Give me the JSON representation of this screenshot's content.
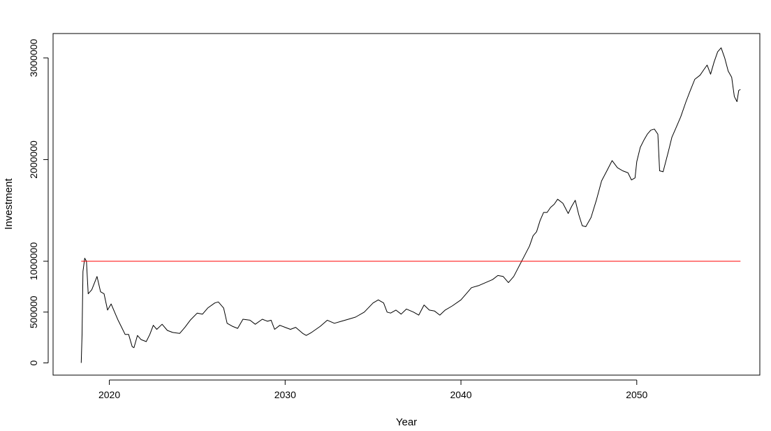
{
  "chart_data": {
    "type": "line",
    "title": "",
    "xlabel": "Year",
    "ylabel": "Investment",
    "xlim": [
      2016.8,
      2057.0
    ],
    "ylim": [
      -120000,
      3240000
    ],
    "x_ticks": [
      2020,
      2030,
      2040,
      2050
    ],
    "y_ticks": [
      0,
      500000,
      1000000,
      2000000,
      3000000
    ],
    "grid": false,
    "legend": "none",
    "colors": {
      "series": "#000000",
      "reference": "#ff0000"
    },
    "series": [
      {
        "color": "#000000",
        "points": [
          [
            2018.4,
            0
          ],
          [
            2018.45,
            280000
          ],
          [
            2018.5,
            900000
          ],
          [
            2018.6,
            1030000
          ],
          [
            2018.7,
            1000000
          ],
          [
            2018.8,
            680000
          ],
          [
            2019.0,
            720000
          ],
          [
            2019.3,
            850000
          ],
          [
            2019.5,
            700000
          ],
          [
            2019.7,
            680000
          ],
          [
            2019.9,
            520000
          ],
          [
            2020.1,
            580000
          ],
          [
            2020.3,
            500000
          ],
          [
            2020.5,
            420000
          ],
          [
            2020.7,
            350000
          ],
          [
            2020.9,
            280000
          ],
          [
            2021.1,
            280000
          ],
          [
            2021.3,
            160000
          ],
          [
            2021.4,
            150000
          ],
          [
            2021.6,
            270000
          ],
          [
            2021.8,
            230000
          ],
          [
            2022.1,
            210000
          ],
          [
            2022.3,
            280000
          ],
          [
            2022.5,
            370000
          ],
          [
            2022.7,
            330000
          ],
          [
            2023.0,
            380000
          ],
          [
            2023.3,
            320000
          ],
          [
            2023.6,
            300000
          ],
          [
            2024.0,
            290000
          ],
          [
            2024.3,
            350000
          ],
          [
            2024.6,
            420000
          ],
          [
            2025.0,
            490000
          ],
          [
            2025.3,
            480000
          ],
          [
            2025.6,
            540000
          ],
          [
            2026.0,
            590000
          ],
          [
            2026.2,
            600000
          ],
          [
            2026.5,
            540000
          ],
          [
            2026.7,
            390000
          ],
          [
            2027.0,
            360000
          ],
          [
            2027.3,
            340000
          ],
          [
            2027.6,
            430000
          ],
          [
            2028.0,
            420000
          ],
          [
            2028.3,
            380000
          ],
          [
            2028.7,
            430000
          ],
          [
            2029.0,
            410000
          ],
          [
            2029.2,
            420000
          ],
          [
            2029.4,
            330000
          ],
          [
            2029.7,
            370000
          ],
          [
            2030.0,
            350000
          ],
          [
            2030.3,
            330000
          ],
          [
            2030.6,
            350000
          ],
          [
            2031.0,
            290000
          ],
          [
            2031.2,
            270000
          ],
          [
            2031.5,
            300000
          ],
          [
            2032.0,
            360000
          ],
          [
            2032.4,
            420000
          ],
          [
            2032.8,
            390000
          ],
          [
            2033.2,
            410000
          ],
          [
            2033.6,
            430000
          ],
          [
            2034.0,
            450000
          ],
          [
            2034.5,
            500000
          ],
          [
            2035.0,
            590000
          ],
          [
            2035.3,
            620000
          ],
          [
            2035.6,
            590000
          ],
          [
            2035.8,
            500000
          ],
          [
            2036.0,
            490000
          ],
          [
            2036.3,
            520000
          ],
          [
            2036.6,
            480000
          ],
          [
            2036.9,
            530000
          ],
          [
            2037.3,
            500000
          ],
          [
            2037.6,
            470000
          ],
          [
            2037.9,
            570000
          ],
          [
            2038.2,
            520000
          ],
          [
            2038.5,
            510000
          ],
          [
            2038.8,
            470000
          ],
          [
            2039.1,
            520000
          ],
          [
            2039.5,
            560000
          ],
          [
            2040.0,
            620000
          ],
          [
            2040.3,
            680000
          ],
          [
            2040.6,
            740000
          ],
          [
            2041.0,
            760000
          ],
          [
            2041.4,
            790000
          ],
          [
            2041.8,
            820000
          ],
          [
            2042.1,
            860000
          ],
          [
            2042.4,
            850000
          ],
          [
            2042.7,
            790000
          ],
          [
            2043.0,
            850000
          ],
          [
            2043.3,
            950000
          ],
          [
            2043.6,
            1050000
          ],
          [
            2043.9,
            1150000
          ],
          [
            2044.1,
            1250000
          ],
          [
            2044.3,
            1290000
          ],
          [
            2044.5,
            1400000
          ],
          [
            2044.7,
            1480000
          ],
          [
            2044.9,
            1480000
          ],
          [
            2045.1,
            1530000
          ],
          [
            2045.3,
            1560000
          ],
          [
            2045.5,
            1610000
          ],
          [
            2045.8,
            1570000
          ],
          [
            2046.1,
            1470000
          ],
          [
            2046.3,
            1540000
          ],
          [
            2046.5,
            1600000
          ],
          [
            2046.7,
            1460000
          ],
          [
            2046.9,
            1350000
          ],
          [
            2047.1,
            1340000
          ],
          [
            2047.4,
            1430000
          ],
          [
            2047.7,
            1600000
          ],
          [
            2048.0,
            1790000
          ],
          [
            2048.3,
            1890000
          ],
          [
            2048.6,
            1990000
          ],
          [
            2048.9,
            1920000
          ],
          [
            2049.2,
            1890000
          ],
          [
            2049.5,
            1870000
          ],
          [
            2049.7,
            1800000
          ],
          [
            2049.9,
            1820000
          ],
          [
            2050.0,
            1980000
          ],
          [
            2050.2,
            2120000
          ],
          [
            2050.4,
            2190000
          ],
          [
            2050.6,
            2250000
          ],
          [
            2050.8,
            2290000
          ],
          [
            2051.0,
            2300000
          ],
          [
            2051.2,
            2250000
          ],
          [
            2051.3,
            1890000
          ],
          [
            2051.5,
            1880000
          ],
          [
            2051.8,
            2080000
          ],
          [
            2052.0,
            2220000
          ],
          [
            2052.2,
            2300000
          ],
          [
            2052.5,
            2420000
          ],
          [
            2052.8,
            2570000
          ],
          [
            2053.0,
            2660000
          ],
          [
            2053.3,
            2790000
          ],
          [
            2053.6,
            2830000
          ],
          [
            2053.8,
            2880000
          ],
          [
            2054.0,
            2930000
          ],
          [
            2054.2,
            2840000
          ],
          [
            2054.4,
            2960000
          ],
          [
            2054.6,
            3060000
          ],
          [
            2054.8,
            3100000
          ],
          [
            2055.0,
            3000000
          ],
          [
            2055.2,
            2870000
          ],
          [
            2055.4,
            2810000
          ],
          [
            2055.55,
            2620000
          ],
          [
            2055.7,
            2570000
          ],
          [
            2055.8,
            2680000
          ],
          [
            2055.9,
            2690000
          ]
        ]
      },
      {
        "color": "#ff0000",
        "points": [
          [
            2018.4,
            1000000
          ],
          [
            2055.9,
            1000000
          ]
        ]
      }
    ]
  }
}
